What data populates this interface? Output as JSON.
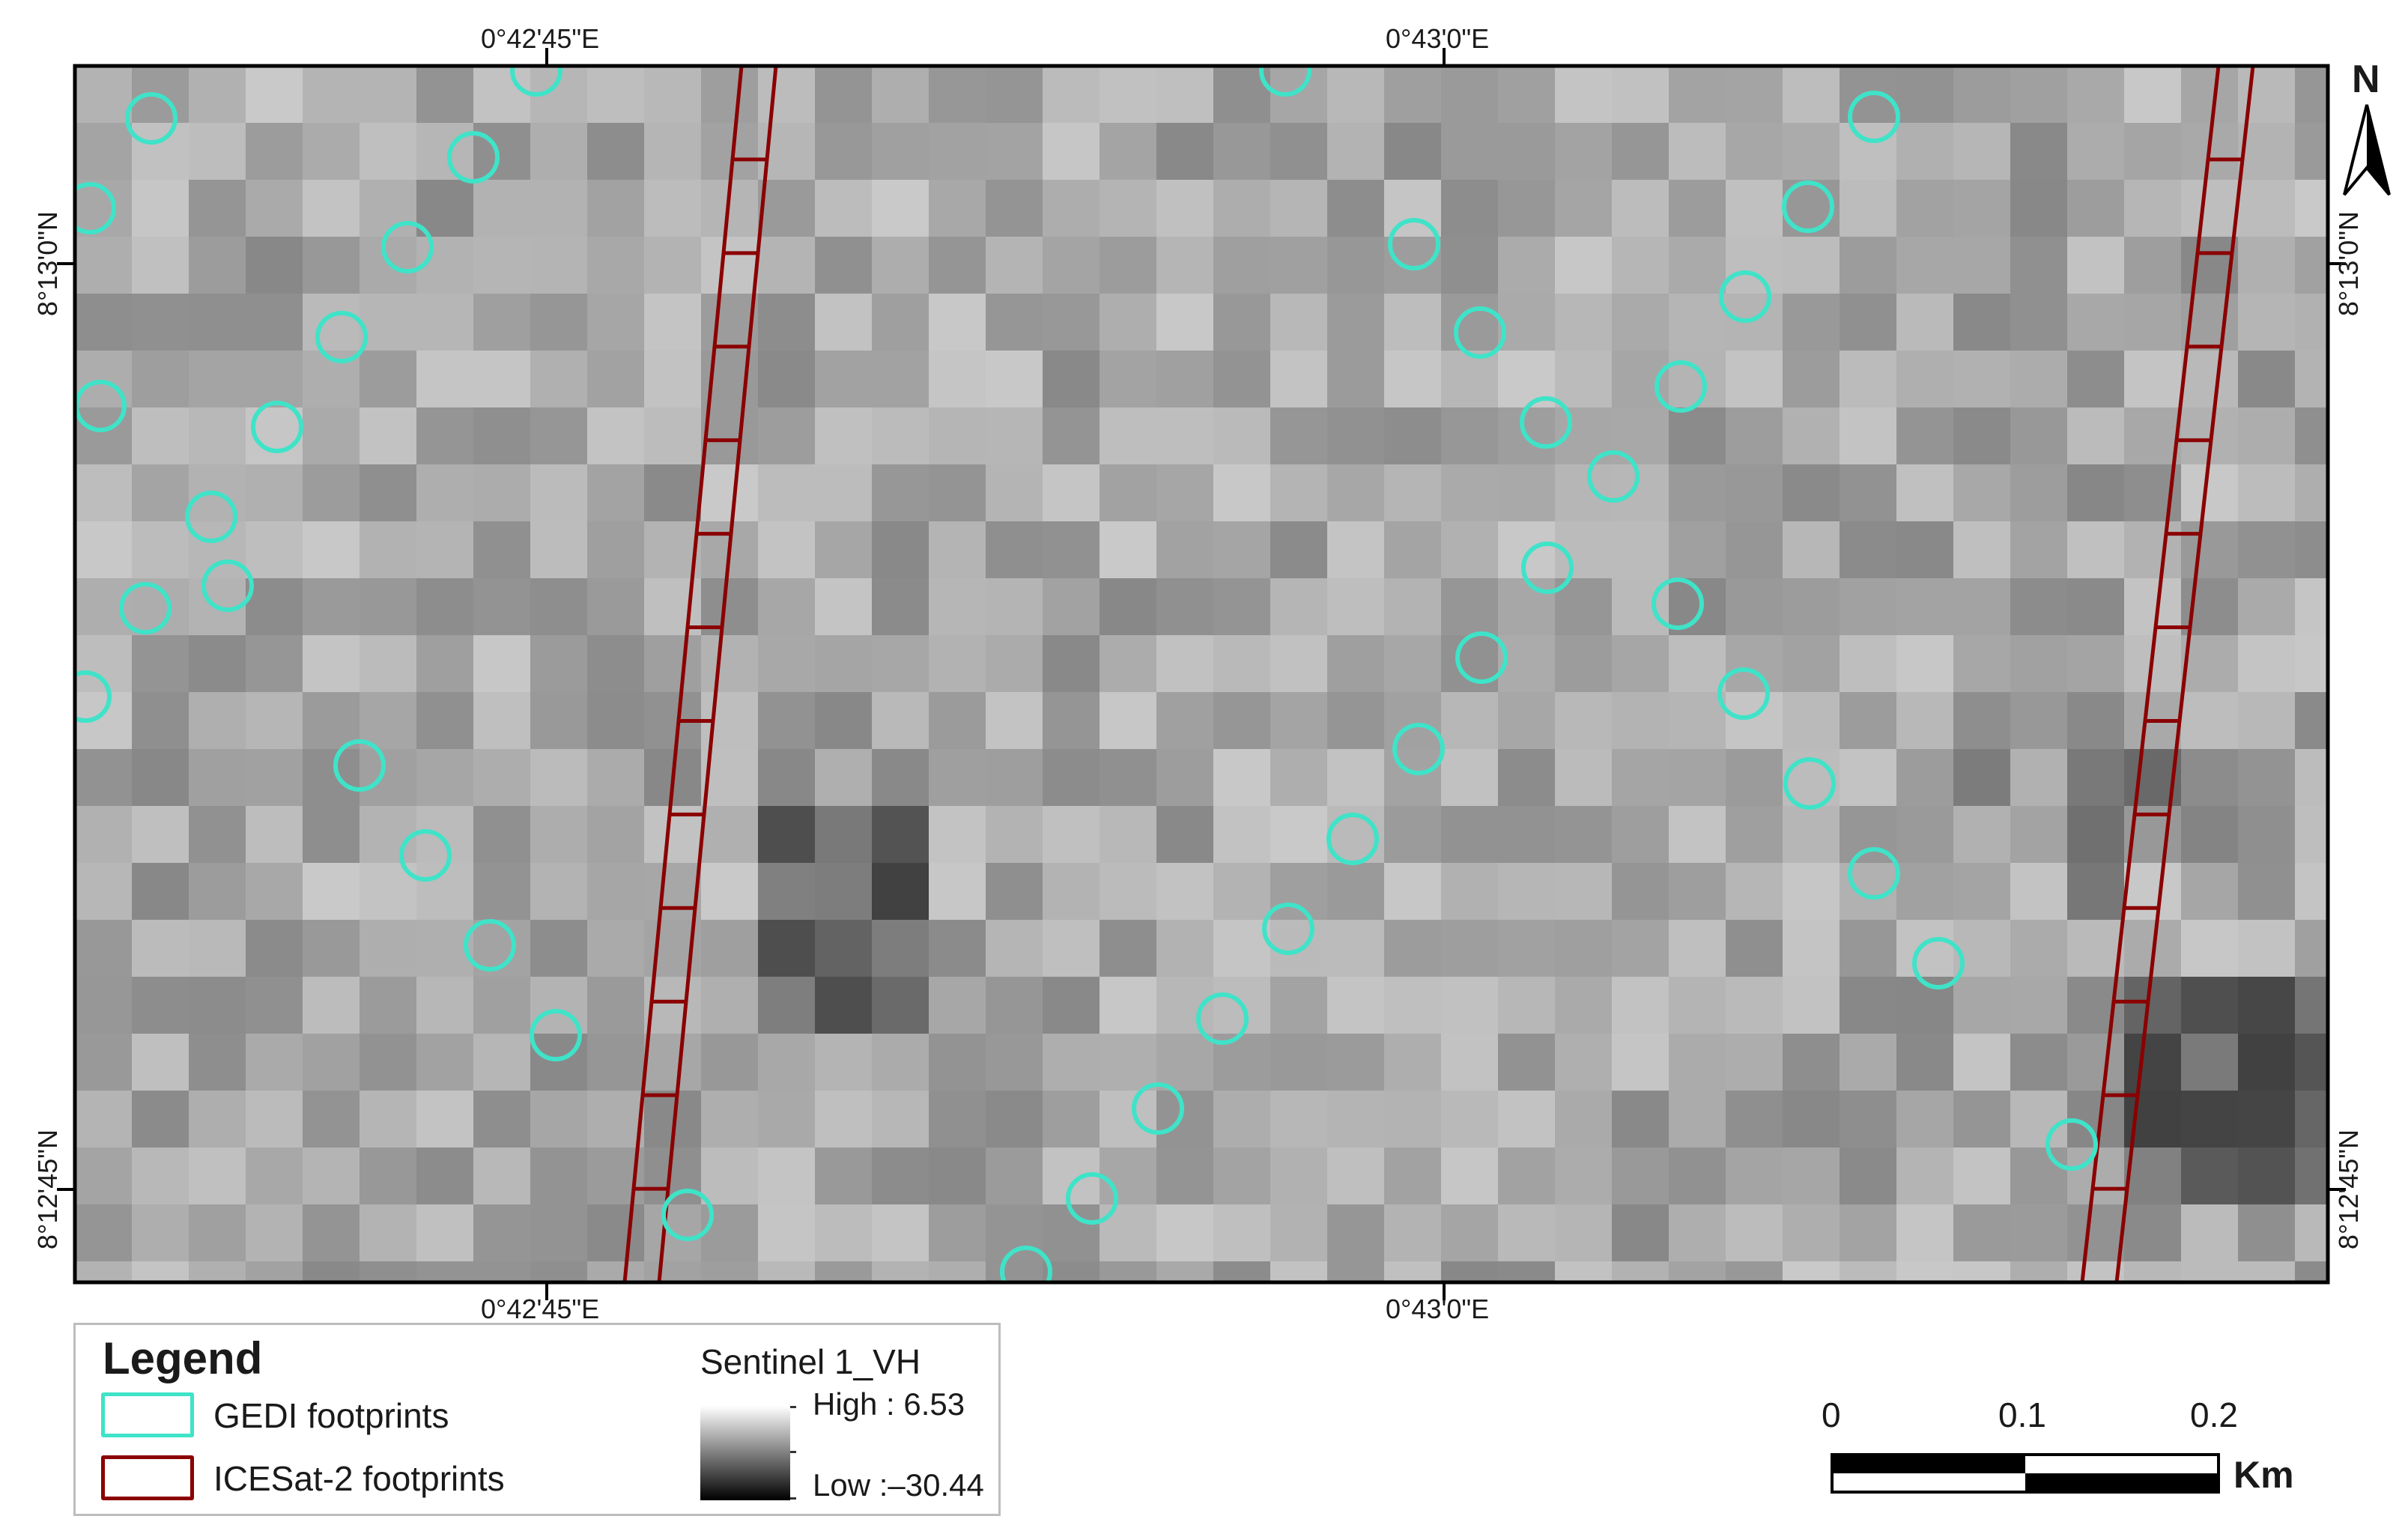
{
  "map": {
    "raster_name": "Sentinel 1_VH",
    "raster_range": {
      "high": 6.53,
      "low": -30.44
    },
    "colors": {
      "gedi": "#3fe3c8",
      "icesat2": "#8b0000",
      "frame": "#000000",
      "legend_border": "#bdbdbd"
    },
    "top_axis_labels": [
      "0°42'45\"E",
      "0°43'0\"E"
    ],
    "bottom_axis_labels": [
      "0°42'45\"E",
      "0°43'0\"E"
    ],
    "left_axis_labels": [
      "8°13'0\"N",
      "8°12'45\"N"
    ],
    "right_axis_labels": [
      "8°13'0\"N",
      "8°12'45\"N"
    ]
  },
  "north_arrow": {
    "label": "N",
    "icon": "north-arrow-icon"
  },
  "legend": {
    "title": "Legend",
    "items": [
      {
        "label": "GEDI footprints",
        "icon": "hollow-rectangle-cyan"
      },
      {
        "label": "ICESat-2 footprints",
        "icon": "hollow-rectangle-darkred"
      }
    ],
    "ramp": {
      "title": "Sentinel 1_VH",
      "high_label": "High : 6.53",
      "low_label": "Low :–30.44"
    }
  },
  "scale_bar": {
    "labels": [
      "0",
      "0.1",
      "0.2"
    ],
    "unit": "Km"
  }
}
